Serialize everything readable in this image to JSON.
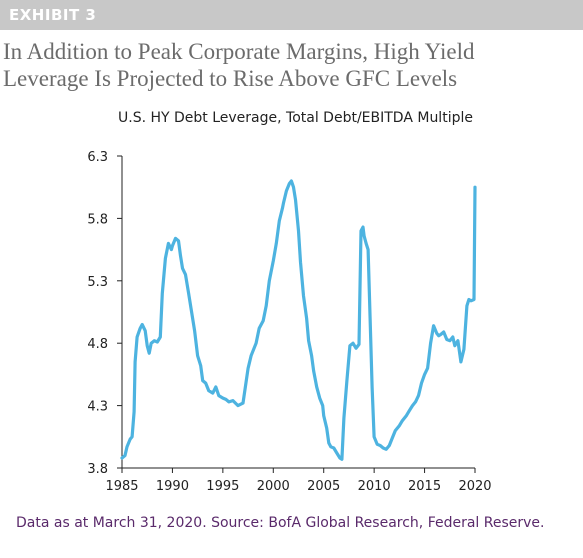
{
  "header": {
    "exhibit_label": "EXHIBIT 3",
    "title_line1": "In Addition to Peak Corporate Margins, High Yield",
    "title_line2": "Leverage Is Projected to Rise Above GFC Levels"
  },
  "footnote": "Data as at March 31, 2020. Source: BofA Global Research, Federal Reserve.",
  "colors": {
    "line": "#4db3e0",
    "header_bar": "#c8c8c8",
    "footnote": "#5a2a6b"
  },
  "chart_data": {
    "type": "line",
    "title": "U.S. HY Debt Leverage, Total Debt/EBITDA Multiple",
    "xlabel": "",
    "ylabel": "",
    "xlim": [
      1985,
      2020
    ],
    "ylim": [
      3.8,
      6.3
    ],
    "x_ticks": [
      "1985",
      "1990",
      "1995",
      "2000",
      "2005",
      "2010",
      "2015",
      "2020"
    ],
    "y_ticks": [
      "6.3",
      "5.8",
      "5.3",
      "4.8",
      "4.3",
      "3.8"
    ],
    "grid": false,
    "legend": "none",
    "series": [
      {
        "x": [
          1985.0,
          1985.3,
          1985.5,
          1985.8,
          1986.0,
          1986.2,
          1986.3,
          1986.5,
          1986.8,
          1987.0,
          1987.3,
          1987.5,
          1987.7,
          1987.9,
          1988.2,
          1988.5,
          1988.8,
          1989.0,
          1989.3,
          1989.6,
          1989.9,
          1990.0,
          1990.3,
          1990.6,
          1990.8,
          1991.0,
          1991.3,
          1991.6,
          1991.9,
          1992.2,
          1992.5,
          1992.8,
          1993.0,
          1993.3,
          1993.6,
          1994.0,
          1994.3,
          1994.6,
          1995.0,
          1995.3,
          1995.6,
          1996.0,
          1996.5,
          1997.0,
          1997.5,
          1997.8,
          1998.0,
          1998.3,
          1998.6,
          1999.0,
          1999.3,
          1999.6,
          2000.0,
          2000.3,
          2000.6,
          2000.9,
          2001.0,
          2001.3,
          2001.6,
          2001.8,
          2002.0,
          2002.2,
          2002.5,
          2002.7,
          2003.0,
          2003.3,
          2003.5,
          2003.8,
          2004.0,
          2004.3,
          2004.6,
          2004.9,
          2005.0,
          2005.3,
          2005.5,
          2005.7,
          2006.0,
          2006.3,
          2006.6,
          2006.8,
          2007.0,
          2007.3,
          2007.6,
          2007.9,
          2008.2,
          2008.5,
          2008.7,
          2008.9,
          2009.0,
          2009.2,
          2009.4,
          2009.6,
          2009.8,
          2010.0,
          2010.3,
          2010.6,
          2010.9,
          2011.2,
          2011.5,
          2011.8,
          2012.1,
          2012.5,
          2012.8,
          2013.2,
          2013.5,
          2013.8,
          2014.1,
          2014.4,
          2014.7,
          2015.0,
          2015.3,
          2015.6,
          2015.9,
          2016.2,
          2016.4,
          2016.6,
          2016.9,
          2017.2,
          2017.5,
          2017.8,
          2018.0,
          2018.3,
          2018.6,
          2018.9,
          2019.2,
          2019.4,
          2019.6,
          2019.9,
          2020.0
        ],
        "values": [
          3.88,
          3.9,
          3.97,
          4.03,
          4.05,
          4.25,
          4.65,
          4.85,
          4.92,
          4.95,
          4.9,
          4.78,
          4.72,
          4.8,
          4.82,
          4.81,
          4.85,
          5.2,
          5.48,
          5.6,
          5.55,
          5.58,
          5.64,
          5.62,
          5.5,
          5.4,
          5.35,
          5.2,
          5.05,
          4.9,
          4.7,
          4.62,
          4.5,
          4.48,
          4.42,
          4.4,
          4.45,
          4.38,
          4.36,
          4.35,
          4.33,
          4.34,
          4.3,
          4.32,
          4.6,
          4.7,
          4.74,
          4.8,
          4.92,
          4.98,
          5.1,
          5.3,
          5.46,
          5.6,
          5.78,
          5.88,
          5.92,
          6.02,
          6.08,
          6.1,
          6.05,
          5.95,
          5.7,
          5.45,
          5.18,
          5.0,
          4.82,
          4.7,
          4.58,
          4.45,
          4.36,
          4.3,
          4.22,
          4.12,
          4.0,
          3.97,
          3.96,
          3.92,
          3.88,
          3.87,
          4.2,
          4.5,
          4.78,
          4.8,
          4.76,
          4.79,
          5.7,
          5.73,
          5.66,
          5.6,
          5.55,
          5.0,
          4.45,
          4.05,
          3.99,
          3.98,
          3.96,
          3.95,
          3.98,
          4.04,
          4.1,
          4.14,
          4.18,
          4.22,
          4.26,
          4.3,
          4.33,
          4.38,
          4.48,
          4.55,
          4.6,
          4.8,
          4.94,
          4.88,
          4.86,
          4.87,
          4.89,
          4.83,
          4.82,
          4.85,
          4.78,
          4.82,
          4.65,
          4.75,
          5.1,
          5.15,
          5.14,
          5.15,
          6.05
        ]
      }
    ]
  }
}
